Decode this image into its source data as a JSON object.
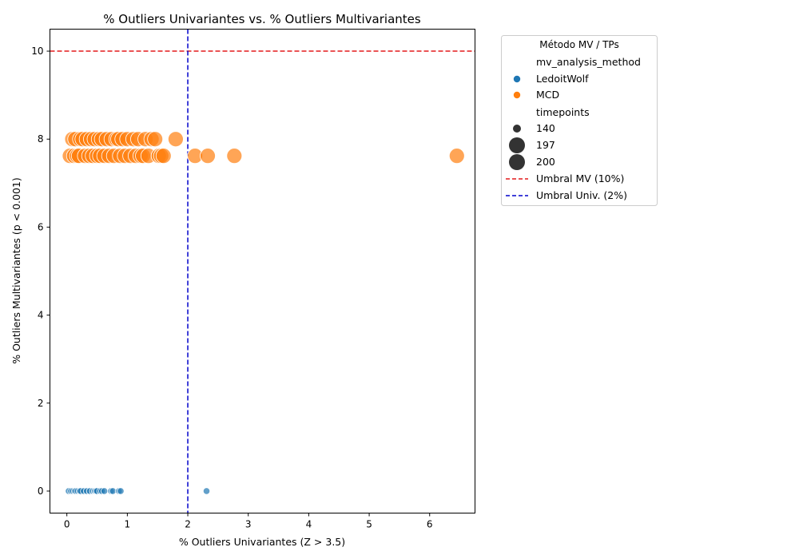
{
  "chart_data": {
    "type": "scatter",
    "title": "% Outliers Univariantes vs. % Outliers Multivariantes",
    "xlabel": "% Outliers Univariantes (Z > 3.5)",
    "ylabel": "% Outliers Multivariantes (p < 0.001)",
    "xlim": [
      -0.28,
      6.75
    ],
    "ylim": [
      -0.5,
      10.5
    ],
    "xticks": [
      0,
      1,
      2,
      3,
      4,
      5,
      6
    ],
    "yticks": [
      0,
      2,
      4,
      6,
      8,
      10
    ],
    "grid": false,
    "legend": {
      "title": "Método MV / TPs",
      "placement": "outside-right",
      "hue_header": "mv_analysis_method",
      "size_header": "timepoints",
      "hue_items": [
        {
          "label": "LedoitWolf",
          "color": "#1f77b4"
        },
        {
          "label": "MCD",
          "color": "#ff7f0e"
        }
      ],
      "size_items": [
        {
          "label": "140",
          "value": 140
        },
        {
          "label": "197",
          "value": 197
        },
        {
          "label": "200",
          "value": 200
        }
      ],
      "line_items": [
        {
          "label": "Umbral MV (10%)",
          "color": "#e41a1c"
        },
        {
          "label": "Umbral Univ. (2%)",
          "color": "#0000cc"
        }
      ]
    },
    "reference_lines": [
      {
        "orientation": "horizontal",
        "value": 10,
        "label": "Umbral MV (10%)",
        "color": "#e41a1c"
      },
      {
        "orientation": "vertical",
        "value": 2,
        "label": "Umbral Univ. (2%)",
        "color": "#0000cc"
      }
    ],
    "series": [
      {
        "name": "LedoitWolf",
        "color": "#1f77b4",
        "timepoints": 140,
        "points": [
          [
            0.03,
            0
          ],
          [
            0.07,
            0
          ],
          [
            0.1,
            0
          ],
          [
            0.13,
            0
          ],
          [
            0.15,
            0
          ],
          [
            0.18,
            0
          ],
          [
            0.21,
            0
          ],
          [
            0.23,
            0
          ],
          [
            0.28,
            0
          ],
          [
            0.33,
            0
          ],
          [
            0.38,
            0
          ],
          [
            0.43,
            0
          ],
          [
            0.46,
            0
          ],
          [
            0.48,
            0
          ],
          [
            0.5,
            0
          ],
          [
            0.55,
            0
          ],
          [
            0.58,
            0
          ],
          [
            0.62,
            0
          ],
          [
            0.73,
            0
          ],
          [
            0.76,
            0
          ],
          [
            0.86,
            0
          ],
          [
            0.89,
            0
          ],
          [
            2.31,
            0
          ]
        ]
      },
      {
        "name": "MCD",
        "color": "#ff7f0e",
        "timepoints": 200,
        "points": [
          [
            0.05,
            7.62
          ],
          [
            0.09,
            8.0
          ],
          [
            0.12,
            7.62
          ],
          [
            0.14,
            8.0
          ],
          [
            0.17,
            7.62
          ],
          [
            0.2,
            7.62
          ],
          [
            0.22,
            8.0
          ],
          [
            0.26,
            8.0
          ],
          [
            0.3,
            7.62
          ],
          [
            0.33,
            8.0
          ],
          [
            0.37,
            7.62
          ],
          [
            0.4,
            8.0
          ],
          [
            0.43,
            7.62
          ],
          [
            0.46,
            8.0
          ],
          [
            0.5,
            7.62
          ],
          [
            0.53,
            8.0
          ],
          [
            0.55,
            7.62
          ],
          [
            0.58,
            8.0
          ],
          [
            0.62,
            7.62
          ],
          [
            0.66,
            8.0
          ],
          [
            0.7,
            7.62
          ],
          [
            0.74,
            8.0
          ],
          [
            0.78,
            7.62
          ],
          [
            0.82,
            8.0
          ],
          [
            0.85,
            8.0
          ],
          [
            0.88,
            7.62
          ],
          [
            0.92,
            8.0
          ],
          [
            0.96,
            7.62
          ],
          [
            1.0,
            8.0
          ],
          [
            1.05,
            7.62
          ],
          [
            1.1,
            8.0
          ],
          [
            1.14,
            7.62
          ],
          [
            1.18,
            8.0
          ],
          [
            1.22,
            7.62
          ],
          [
            1.26,
            7.62
          ],
          [
            1.3,
            8.0
          ],
          [
            1.35,
            7.62
          ],
          [
            1.4,
            8.0
          ],
          [
            1.46,
            8.0
          ],
          [
            1.52,
            7.62
          ],
          [
            1.56,
            7.62
          ],
          [
            1.6,
            7.62
          ],
          [
            1.8,
            8.0
          ],
          [
            2.12,
            7.62
          ],
          [
            2.33,
            7.62
          ],
          [
            2.77,
            7.62
          ],
          [
            6.45,
            7.62
          ]
        ]
      }
    ]
  }
}
